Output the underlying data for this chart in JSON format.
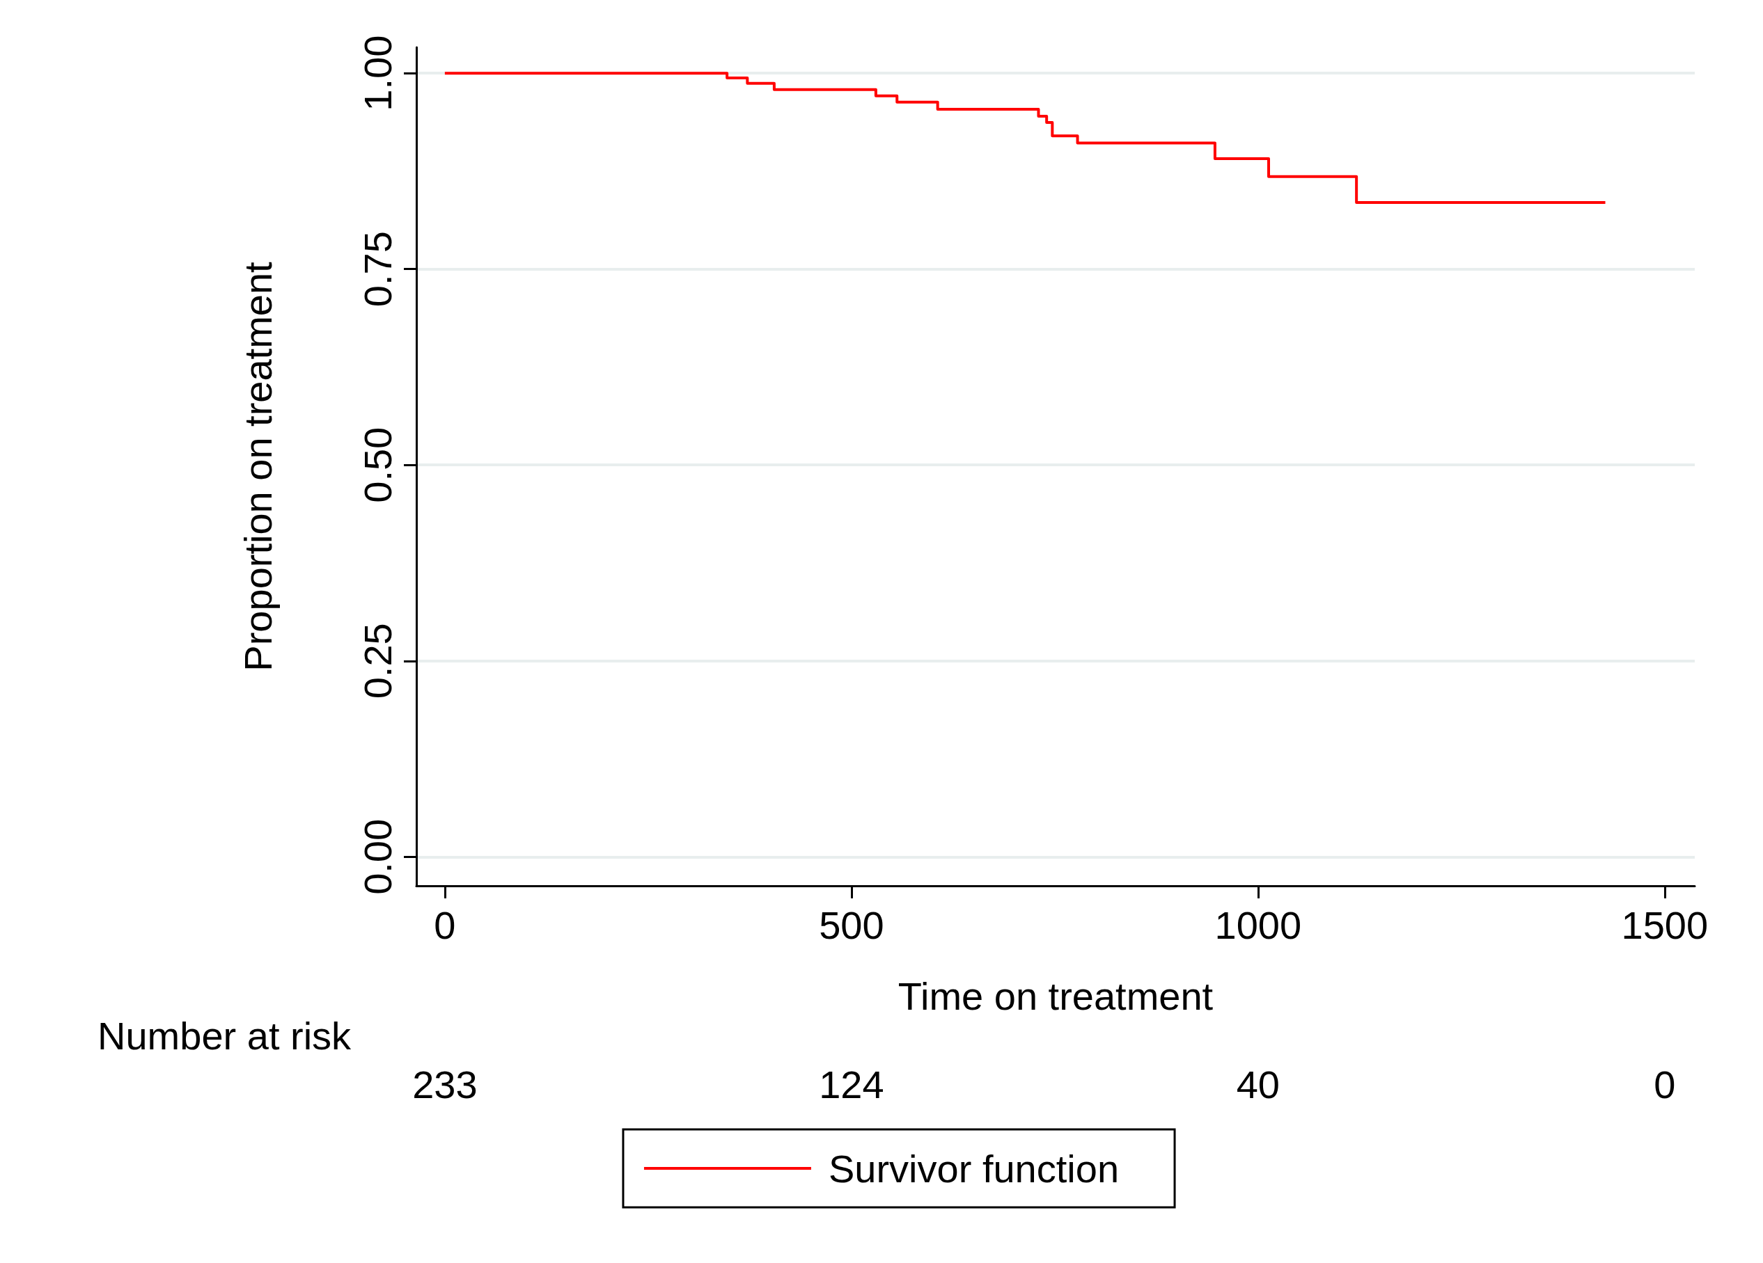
{
  "chart_data": {
    "type": "step",
    "xlabel": "Time on treatment",
    "ylabel": "Proportion on treatment",
    "x": [
      0,
      347,
      372,
      405,
      530,
      556,
      606,
      730,
      740,
      747,
      778,
      947,
      1013,
      1121,
      1427
    ],
    "series": [
      {
        "name": "Survivor function",
        "color": "#ff0000",
        "values": [
          1,
          0.994,
          0.987,
          0.979,
          0.971,
          0.963,
          0.954,
          0.945,
          0.937,
          0.92,
          0.911,
          0.891,
          0.868,
          0.835,
          0.835
        ]
      }
    ],
    "xlim": [
      -35,
      1537
    ],
    "xticks": [
      0,
      500,
      1000,
      1500
    ],
    "ylim": [
      -0.037,
      1.033
    ],
    "yticks": [
      {
        "value": 0,
        "label": "0.00"
      },
      {
        "value": 0.25,
        "label": "0.25"
      },
      {
        "value": 0.5,
        "label": "0.50"
      },
      {
        "value": 0.75,
        "label": "0.75"
      },
      {
        "value": 1,
        "label": "1.00"
      }
    ],
    "grid": "y",
    "legend": "bottom",
    "marker": "none",
    "line_style": "solid",
    "annotations": [
      "Number at risk",
      "233",
      "124",
      "40",
      "0"
    ]
  }
}
